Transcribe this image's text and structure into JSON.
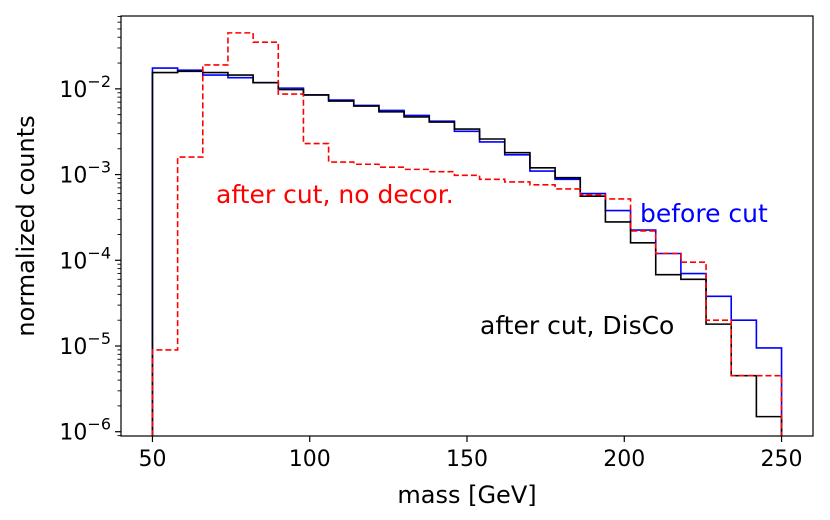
{
  "chart_data": {
    "type": "line",
    "title": "",
    "xlabel": "mass [GeV]",
    "ylabel": "normalized counts",
    "xlim": [
      40,
      260
    ],
    "ylim_log10": [
      -6.05,
      -1.15
    ],
    "yscale": "log",
    "xticks": [
      50,
      100,
      150,
      200,
      250
    ],
    "xtick_labels": [
      "50",
      "100",
      "150",
      "200",
      "250"
    ],
    "yticks": [
      {
        "base": "10",
        "exp": "−2",
        "value": -2
      },
      {
        "base": "10",
        "exp": "−3",
        "value": -3
      },
      {
        "base": "10",
        "exp": "−4",
        "value": -4
      },
      {
        "base": "10",
        "exp": "−5",
        "value": -5
      },
      {
        "base": "10",
        "exp": "−6",
        "value": -6
      }
    ],
    "bin_edges": [
      50,
      58,
      66,
      74,
      82,
      90,
      98,
      106,
      114,
      122,
      130,
      138,
      146,
      154,
      162,
      170,
      178,
      186,
      194,
      202,
      210,
      218,
      226,
      234,
      242,
      250
    ],
    "series": [
      {
        "name": "before cut",
        "color": "#0000ff",
        "dash": "",
        "values": [
          0.0175,
          0.0165,
          0.0145,
          0.0135,
          0.0118,
          0.0102,
          0.0085,
          0.0074,
          0.0064,
          0.0056,
          0.0049,
          0.0042,
          0.0032,
          0.0024,
          0.0017,
          0.0011,
          0.00088,
          0.0006,
          0.00038,
          0.000225,
          0.00012,
          7e-05,
          3.8e-05,
          2e-05,
          9.5e-06
        ]
      },
      {
        "name": "after cut, DisCo",
        "color": "#000000",
        "dash": "",
        "values": [
          0.0155,
          0.016,
          0.0155,
          0.0145,
          0.0118,
          0.0098,
          0.0085,
          0.0072,
          0.0063,
          0.0054,
          0.0047,
          0.0041,
          0.0034,
          0.0026,
          0.0018,
          0.0012,
          0.00092,
          0.00056,
          0.00028,
          0.00016,
          6.8e-05,
          6e-05,
          1.8e-05,
          4.5e-06,
          1.5e-06
        ]
      },
      {
        "name": "after cut, no decor.",
        "color": "#ff0000",
        "dash": "6,3",
        "values": [
          9e-06,
          0.0016,
          0.019,
          0.045,
          0.035,
          0.0087,
          0.0023,
          0.0014,
          0.00132,
          0.00122,
          0.00115,
          0.00108,
          0.00098,
          0.00088,
          0.00082,
          0.00076,
          0.00068,
          0.00058,
          0.00052,
          0.00022,
          0.00012,
          9.5e-05,
          2e-05,
          4.5e-06,
          4.5e-06
        ]
      }
    ],
    "annotations": [
      {
        "text": "before cut",
        "color": "#0000ff"
      },
      {
        "text": "after cut, DisCo",
        "color": "#000000"
      },
      {
        "text": "after cut, no decor.",
        "color": "#ff0000"
      }
    ]
  }
}
